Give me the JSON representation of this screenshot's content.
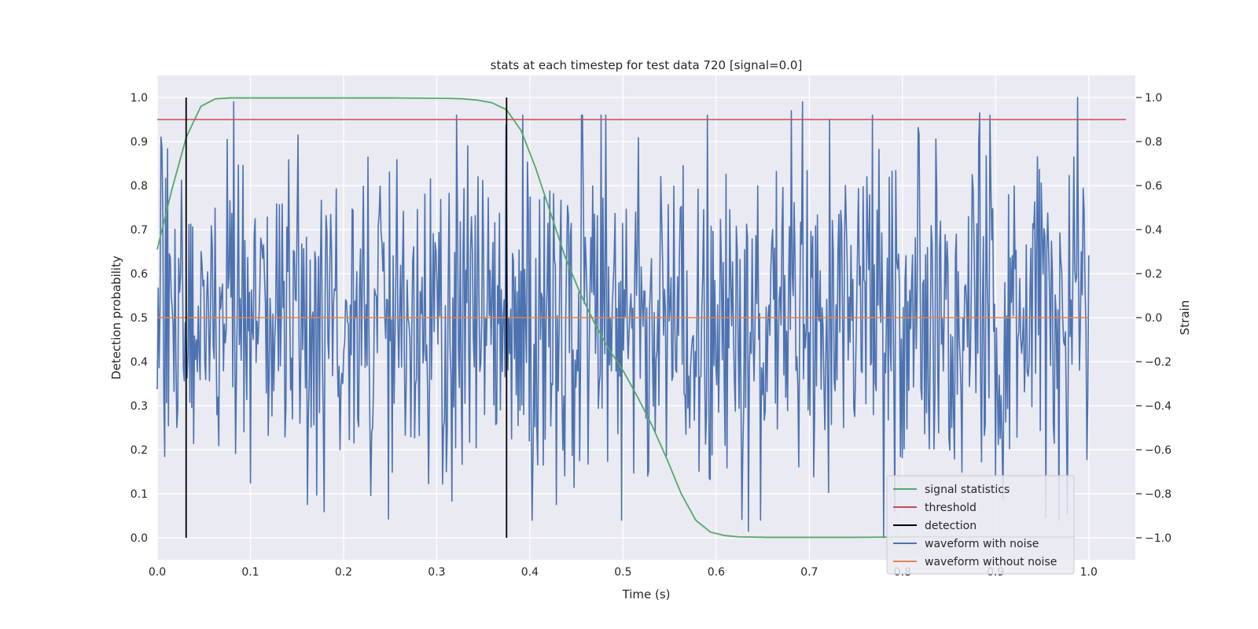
{
  "chart_data": {
    "type": "line",
    "title": "stats at each timestep for test data 720 [signal=0.0]",
    "xlabel": "Time (s)",
    "ylabel_left": "Detection probability",
    "ylabel_right": "Strain",
    "xlim": [
      0.0,
      1.05
    ],
    "ylim_left": [
      -0.05,
      1.05
    ],
    "ylim_right": [
      -1.1,
      1.1
    ],
    "x_ticks": [
      0.0,
      0.1,
      0.2,
      0.3,
      0.4,
      0.5,
      0.6,
      0.7,
      0.8,
      0.9,
      1.0
    ],
    "y_ticks_left": [
      0.0,
      0.1,
      0.2,
      0.3,
      0.4,
      0.5,
      0.6,
      0.7,
      0.8,
      0.9,
      1.0
    ],
    "y_ticks_right": [
      -1.0,
      -0.8,
      -0.6,
      -0.4,
      -0.2,
      0.0,
      0.2,
      0.4,
      0.6,
      0.8,
      1.0
    ],
    "grid": true,
    "legend_position": "lower-right",
    "colors": {
      "background": "#eaeaf2",
      "grid": "#ffffff",
      "signal_statistics": "#55a868",
      "threshold": "#c44e52",
      "detection": "#000000",
      "waveform_with_noise": "#4c72b0",
      "waveform_without_noise": "#dd8452"
    },
    "series": [
      {
        "name": "signal statistics",
        "axis": "left",
        "x": [
          0.0,
          0.0156,
          0.0312,
          0.0469,
          0.0625,
          0.0781,
          0.0938,
          0.125,
          0.1875,
          0.25,
          0.3125,
          0.3281,
          0.3438,
          0.3594,
          0.375,
          0.3906,
          0.4062,
          0.4219,
          0.4375,
          0.4531,
          0.4688,
          0.4844,
          0.5,
          0.5156,
          0.5312,
          0.5469,
          0.5625,
          0.5781,
          0.5938,
          0.6094,
          0.625,
          0.6562,
          0.75,
          0.8125,
          0.875,
          0.9375,
          0.9844
        ],
        "values": [
          0.655,
          0.79,
          0.91,
          0.98,
          0.997,
          0.999,
          0.999,
          0.999,
          0.999,
          0.999,
          0.998,
          0.997,
          0.994,
          0.988,
          0.972,
          0.925,
          0.84,
          0.74,
          0.64,
          0.56,
          0.49,
          0.43,
          0.38,
          0.32,
          0.255,
          0.18,
          0.1,
          0.04,
          0.013,
          0.005,
          0.002,
          0.001,
          0.001,
          0.002,
          0.002,
          0.002,
          0.002
        ]
      },
      {
        "name": "threshold",
        "axis": "left",
        "x": [
          0.0,
          1.04
        ],
        "values": [
          0.95,
          0.95
        ]
      },
      {
        "name": "detection",
        "axis": "left",
        "x": [
          0.031,
          0.375
        ],
        "y_range": [
          0.0,
          1.0
        ]
      },
      {
        "name": "waveform with noise",
        "axis": "right",
        "x_range": [
          0.0,
          1.0
        ],
        "n_points": 1000,
        "value_range": [
          -1.0,
          1.0
        ],
        "std": 0.38,
        "peaks": [
          [
            0.082,
            0.98
          ],
          [
            0.635,
            -0.97
          ],
          [
            0.78,
            -1.0
          ],
          [
            0.988,
            1.0
          ],
          [
            0.693,
            0.98
          ],
          [
            0.681,
            0.94
          ],
          [
            0.883,
            0.93
          ]
        ]
      },
      {
        "name": "waveform without noise",
        "axis": "right",
        "x": [
          0.0,
          1.0
        ],
        "values": [
          0.0,
          0.0
        ]
      }
    ],
    "legend": [
      "signal statistics",
      "threshold",
      "detection",
      "waveform with noise",
      "waveform without noise"
    ]
  }
}
